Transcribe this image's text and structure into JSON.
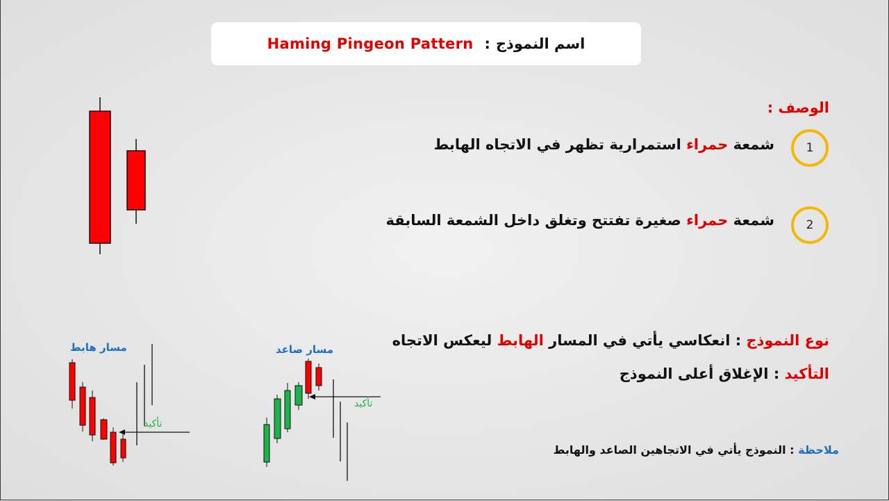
{
  "title": {
    "arabic_label": "اسم النموذج",
    "separator": ":",
    "pattern_name": "Haming Pingeon Pattern"
  },
  "description": {
    "label": "الوصف :",
    "items": [
      {
        "number": "1",
        "prefix": "شمعة",
        "highlight": "حمراء",
        "rest": "استمرارية تظهر في الاتجاه الهابط"
      },
      {
        "number": "2",
        "prefix": "شمعة",
        "highlight": "حمراء",
        "rest": "صغيرة تفتتح وتغلق داخل الشمعة السابقة"
      }
    ]
  },
  "pattern_type": {
    "label": "نوع النموذج",
    "separator": ":",
    "text_before": "انعكاسي يأتي  في المسار",
    "highlight": "الهابط",
    "text_after": "ليعكس الاتجاه"
  },
  "confirmation": {
    "label": "التأكيد",
    "separator": ":",
    "text": "الإغلاق أعلى النموذج"
  },
  "note": {
    "label": "ملاحظة",
    "separator": ":",
    "text": "النموذج يأتي في الاتجاهين الصاعد والهابط"
  },
  "diagrams": {
    "uptrend_label": "مسار صاعد",
    "downtrend_label": "مسار هابط",
    "confirmation_label": "تأكيد"
  },
  "colors": {
    "bearish": "#e00000",
    "bullish": "#1db34a",
    "circle_border": "#f5b800",
    "accent_blue": "#1f6fbf"
  },
  "icons": {
    "main_illustration": "two-red-candlesticks-icon",
    "confirmation_arrow": "left-arrow-icon"
  }
}
